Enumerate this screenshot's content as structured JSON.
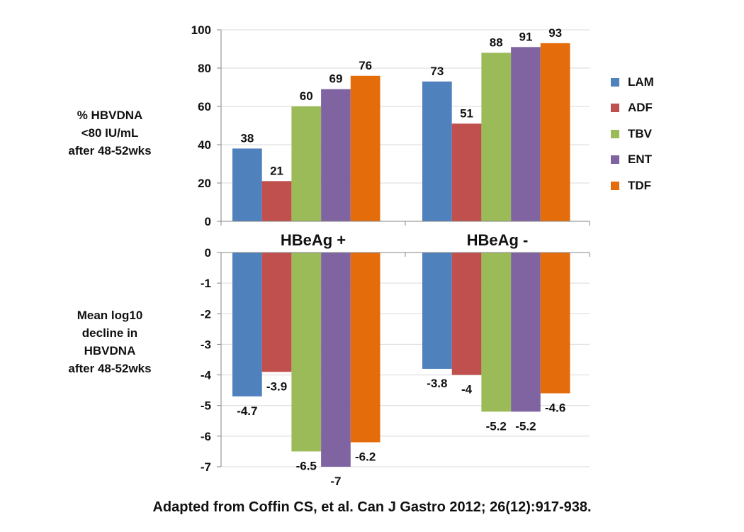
{
  "chart_data": [
    {
      "type": "bar",
      "categories": [
        "HBeAg +",
        "HBeAg -"
      ],
      "series": [
        {
          "name": "LAM",
          "values": [
            38,
            73
          ]
        },
        {
          "name": "ADF",
          "values": [
            21,
            51
          ]
        },
        {
          "name": "TBV",
          "values": [
            60,
            88
          ]
        },
        {
          "name": "ENT",
          "values": [
            69,
            91
          ]
        },
        {
          "name": "TDF",
          "values": [
            76,
            93
          ]
        }
      ],
      "ylabel": "% HBVDNA <80 IU/mL after 48-52wks",
      "ylabel_lines": [
        "% HBVDNA",
        "<80 IU/mL",
        "after 48-52wks"
      ],
      "ylim": [
        0,
        100
      ],
      "yticks": [
        "0",
        "20",
        "40",
        "60",
        "80",
        "100"
      ],
      "grid": true,
      "data_labels": true
    },
    {
      "type": "bar",
      "categories": [
        "HBeAg +",
        "HBeAg -"
      ],
      "series": [
        {
          "name": "LAM",
          "values": [
            -4.7,
            -3.8
          ]
        },
        {
          "name": "ADF",
          "values": [
            -3.9,
            -4
          ]
        },
        {
          "name": "TBV",
          "values": [
            -6.5,
            -5.2
          ]
        },
        {
          "name": "ENT",
          "values": [
            -7,
            -5.2
          ]
        },
        {
          "name": "TDF",
          "values": [
            -6.2,
            -4.6
          ]
        }
      ],
      "ylabel": "Mean log10 decline in HBVDNA after 48-52wks",
      "ylabel_lines": [
        "Mean log10",
        "decline in",
        "HBVDNA",
        "after 48-52wks"
      ],
      "ylim": [
        -7,
        0
      ],
      "yticks": [
        "0",
        "-1",
        "-2",
        "-3",
        "-4",
        "-5",
        "-6",
        "-7"
      ],
      "grid": true,
      "data_labels": true
    }
  ],
  "colors": {
    "LAM": "#4f81bd",
    "ADF": "#c0504d",
    "TBV": "#9bbb59",
    "ENT": "#8064a2",
    "TDF": "#e46c0a",
    "grid": "#d9d9d9",
    "axis": "#868686"
  },
  "legend": {
    "position": "right",
    "items": [
      "LAM",
      "ADF",
      "TBV",
      "ENT",
      "TDF"
    ]
  },
  "source_note": "Adapted from Coffin CS, et al. Can J Gastro 2012; 26(12):917-938."
}
